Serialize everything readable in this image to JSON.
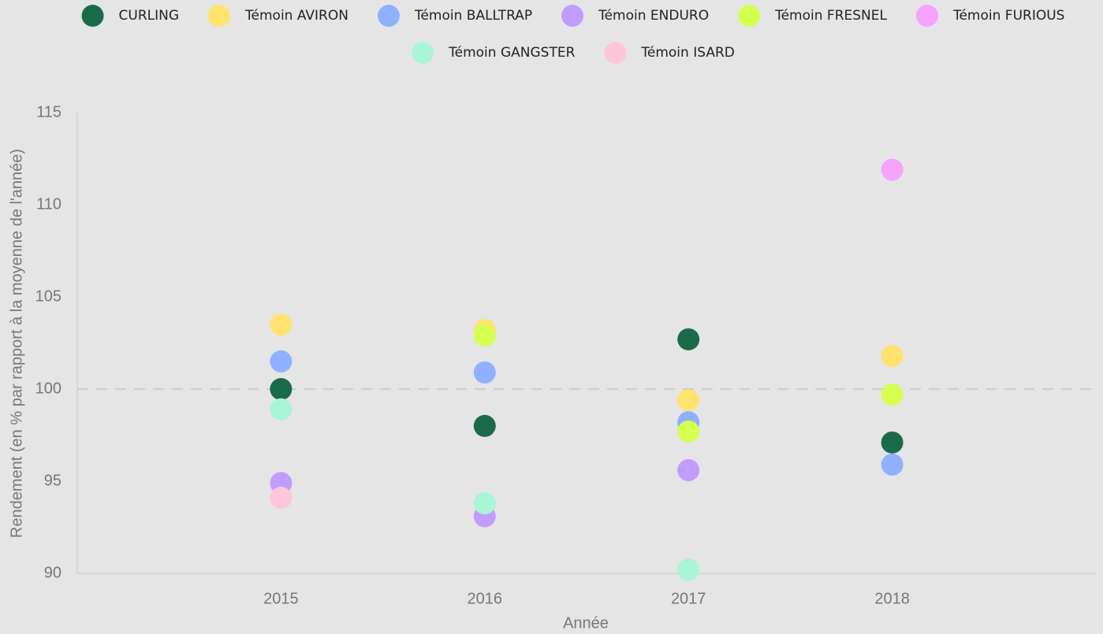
{
  "chart_data": {
    "type": "scatter",
    "x_label": "Année",
    "y_label": "Rendement (en % par rapport à la moyenne de l'année)",
    "x": [
      2015,
      2016,
      2017,
      2018
    ],
    "xlim": [
      2014,
      2019
    ],
    "xticks": [
      2015,
      2016,
      2017,
      2018
    ],
    "ylim": [
      90,
      115
    ],
    "yticks": [
      90,
      95,
      100,
      105,
      110,
      115
    ],
    "reference_line": 100,
    "legend": "top",
    "series": [
      {
        "name": "CURLING",
        "color": "#1a6b4a",
        "values": [
          100.0,
          98.0,
          102.7,
          97.1
        ]
      },
      {
        "name": "Témoin AVIRON",
        "color": "#ffe36e",
        "values": [
          103.5,
          103.2,
          99.4,
          101.8
        ]
      },
      {
        "name": "Témoin BALLTRAP",
        "color": "#8fb0ff",
        "values": [
          101.5,
          100.9,
          98.2,
          95.9
        ]
      },
      {
        "name": "Témoin ENDURO",
        "color": "#c29bff",
        "values": [
          94.9,
          93.1,
          95.6,
          null
        ]
      },
      {
        "name": "Témoin FRESNEL",
        "color": "#d4ff4f",
        "values": [
          null,
          102.9,
          97.7,
          99.7
        ]
      },
      {
        "name": "Témoin FURIOUS",
        "color": "#f5a3ff",
        "values": [
          null,
          null,
          null,
          111.9
        ]
      },
      {
        "name": "Témoin GANGSTER",
        "color": "#a8f5d8",
        "values": [
          98.9,
          93.8,
          90.2,
          null
        ]
      },
      {
        "name": "Témoin ISARD",
        "color": "#ffc6d9",
        "values": [
          94.1,
          null,
          null,
          null
        ]
      }
    ]
  }
}
